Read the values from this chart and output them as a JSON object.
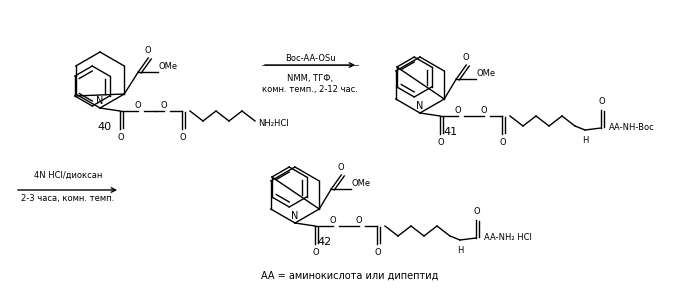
{
  "background_color": "#ffffff",
  "figure_width": 6.99,
  "figure_height": 2.89,
  "dpi": 100,
  "reagents1": [
    "Boc-AA-OSu",
    "NMM, ТГФ,",
    "комн. темп., 2-12 час."
  ],
  "reagents2_line1": "4N HCl/диоксан",
  "reagents2_line2": "2-3 часа, комн. темп.",
  "label40": "40",
  "label41": "41",
  "label42": "42",
  "footnote": "AA = аминокислота или дипептид",
  "ome_label": "OMe",
  "nh2hcl_label": "NH₂HCl",
  "aa_nh_boc_label": "AA-NH-Boc",
  "aa_nh2_hcl_label": "AA-NH₂ HCl"
}
